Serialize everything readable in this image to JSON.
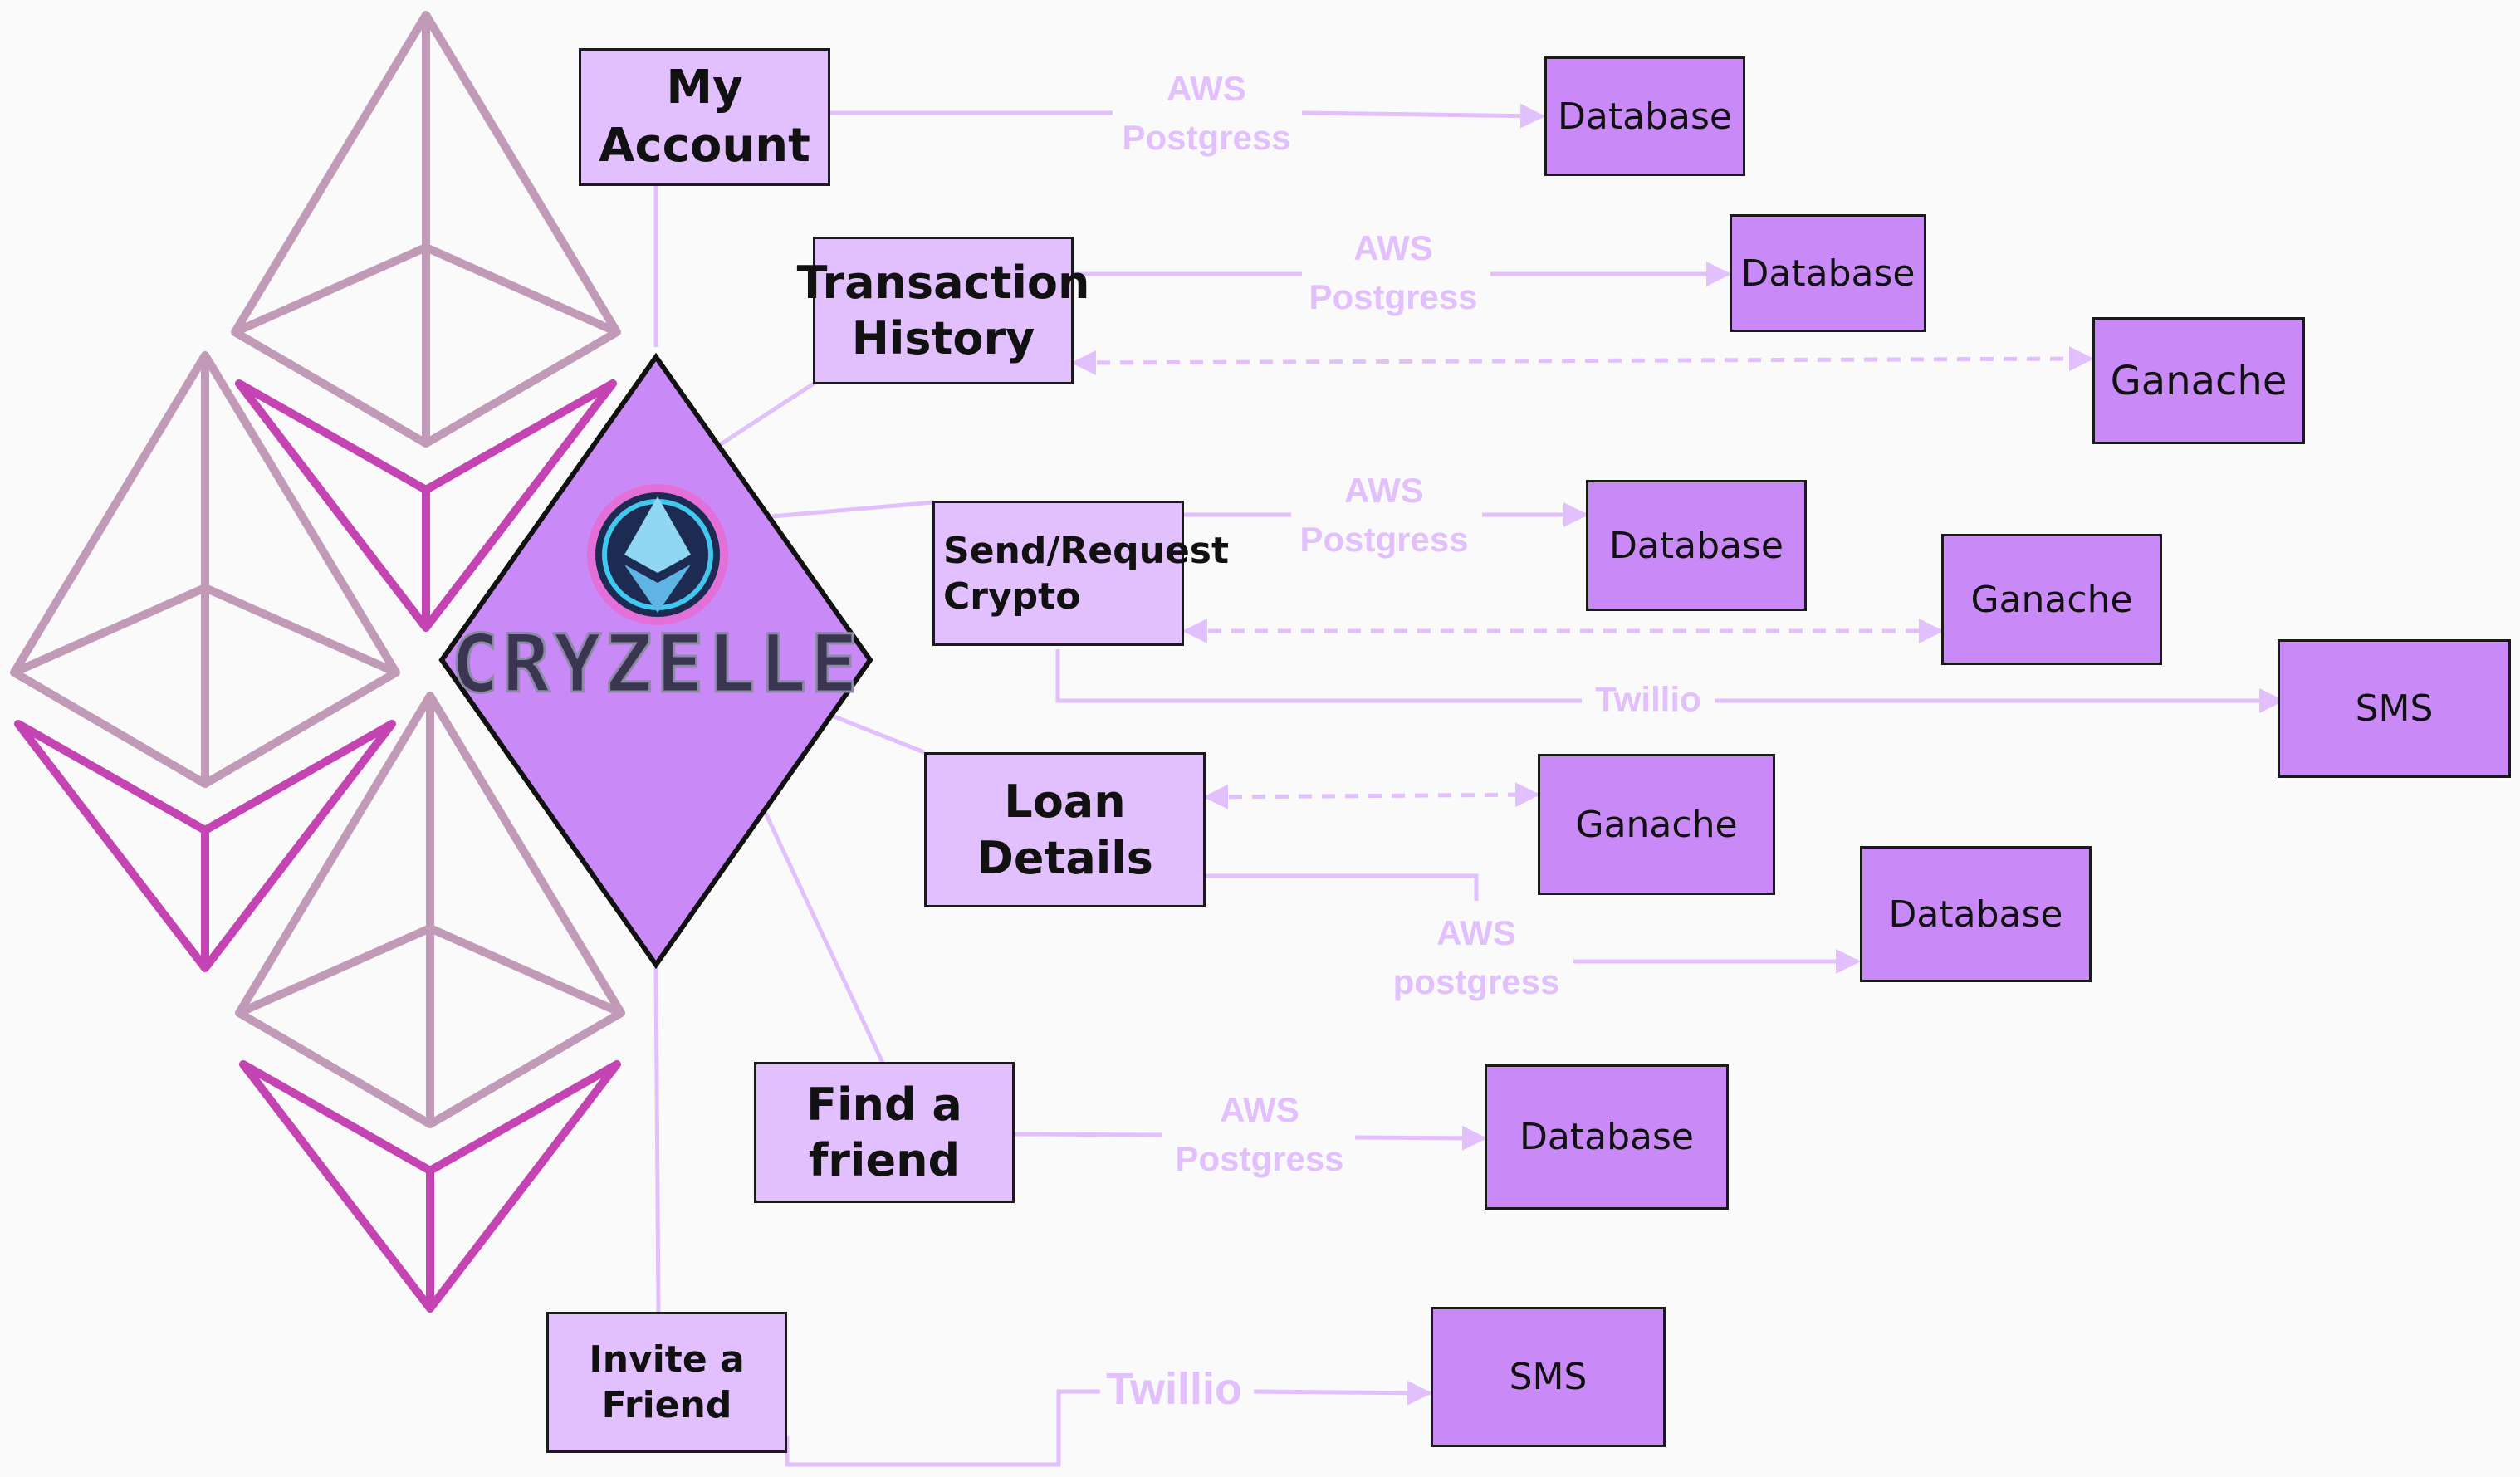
{
  "colors": {
    "feature_fill": "#e2bffd",
    "service_fill": "#c98af7",
    "connector": "#e2bffd",
    "eth_outline_light": "#c19ab8",
    "eth_outline_dark": "#c344b2",
    "hub_fill": "#c98af7"
  },
  "icons": {
    "logo": "ethereum-coin-icon"
  },
  "hub": {
    "title": "CRYZELLE"
  },
  "features": {
    "my_account": "My Account",
    "transaction_history": [
      "Transaction",
      "History"
    ],
    "send_request": [
      "Send/Request",
      "Crypto"
    ],
    "loan_details": "Loan Details",
    "find_friend": "Find a friend",
    "invite_friend": "Invite a Friend"
  },
  "services": {
    "database": "Database",
    "ganache": "Ganache",
    "sms": "SMS"
  },
  "edge_labels": {
    "aws": "AWS",
    "postgress": "Postgress",
    "postgress_lower": "postgress",
    "twillio": "Twillio"
  }
}
